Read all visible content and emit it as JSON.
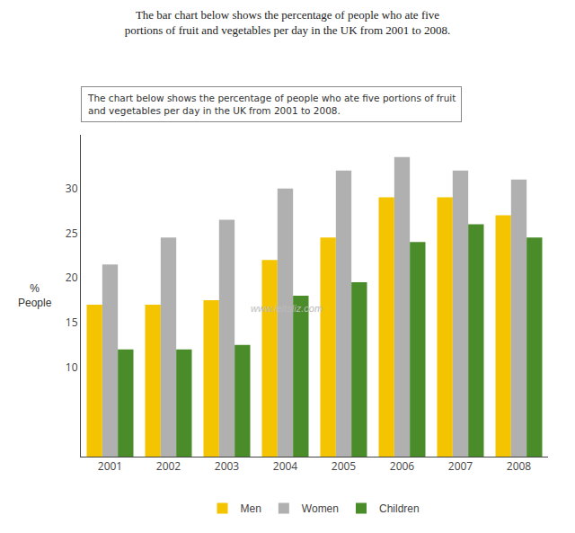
{
  "chart_data": {
    "type": "bar",
    "title": "The bar chart below shows the percentage of people who ate five\nportions of fruit and vegetables per day in the UK from 2001 to 2008.",
    "subtitle": "The chart below shows the percentage of people who ate five portions of fruit\nand vegetables per day in the UK from 2001 to 2008.",
    "ylabel": "%\nPeople",
    "categories": [
      "2001",
      "2002",
      "2003",
      "2004",
      "2005",
      "2006",
      "2007",
      "2008"
    ],
    "series": [
      {
        "name": "Men",
        "color": "#f5c400",
        "values": [
          17,
          17,
          17.5,
          22,
          24.5,
          29,
          29,
          27
        ]
      },
      {
        "name": "Women",
        "color": "#b0b0b0",
        "values": [
          21.5,
          24.5,
          26.5,
          30,
          32,
          33.5,
          32,
          31
        ]
      },
      {
        "name": "Children",
        "color": "#4a8c2a",
        "values": [
          12,
          12,
          12.5,
          18,
          19.5,
          24,
          26,
          24.5
        ]
      }
    ],
    "ylim": [
      0,
      36
    ],
    "yticks": [
      10,
      15,
      20,
      25,
      30
    ],
    "annotations": [
      "www.ieltsliz.com"
    ],
    "grid": false,
    "legend": "bottom"
  }
}
